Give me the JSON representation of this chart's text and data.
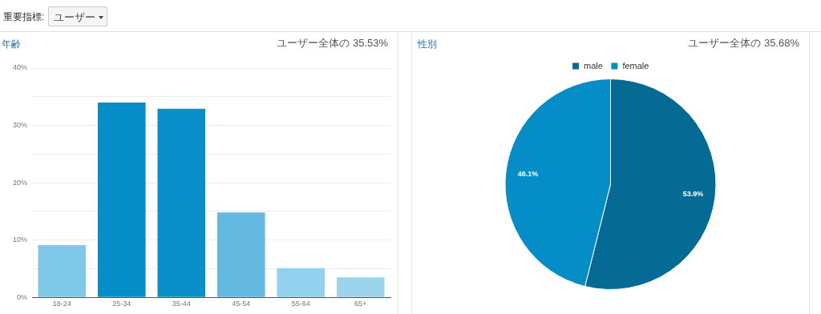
{
  "chart_data": [
    {
      "type": "other",
      "title": "重要指標:",
      "annotations": [
        "ユーザー"
      ]
    },
    {
      "type": "bar",
      "title": "年齢",
      "subtitle": "ユーザー全体の 35.53%",
      "categories": [
        "18-24",
        "25-34",
        "35-44",
        "45-54",
        "55-64",
        "65+"
      ],
      "values": [
        9.1,
        34.0,
        32.9,
        14.8,
        5.1,
        3.5
      ],
      "colors": [
        "#7fc8e8",
        "#058dc7",
        "#0a90c8",
        "#63b9e0",
        "#92d1ee",
        "#9cd4ee"
      ],
      "ylim": [
        0,
        40
      ],
      "yticks": [
        {
          "value": 0,
          "label": "0%"
        },
        {
          "value": 5,
          "label": null
        },
        {
          "value": 10,
          "label": "10%"
        },
        {
          "value": 15,
          "label": null
        },
        {
          "value": 20,
          "label": "20%"
        },
        {
          "value": 25,
          "label": null
        },
        {
          "value": 30,
          "label": "30%"
        },
        {
          "value": 35,
          "label": null
        },
        {
          "value": 40,
          "label": "40%"
        }
      ],
      "grid": "y",
      "legend": false
    },
    {
      "type": "pie",
      "title": "性別",
      "subtitle": "ユーザー全体の 35.68%",
      "categories": [
        "male",
        "female"
      ],
      "values": [
        53.9,
        46.1
      ],
      "colors": [
        "#056b94",
        "#058dc7"
      ],
      "value_labels": [
        "53.9%",
        "46.1%"
      ],
      "legend": "top"
    }
  ]
}
